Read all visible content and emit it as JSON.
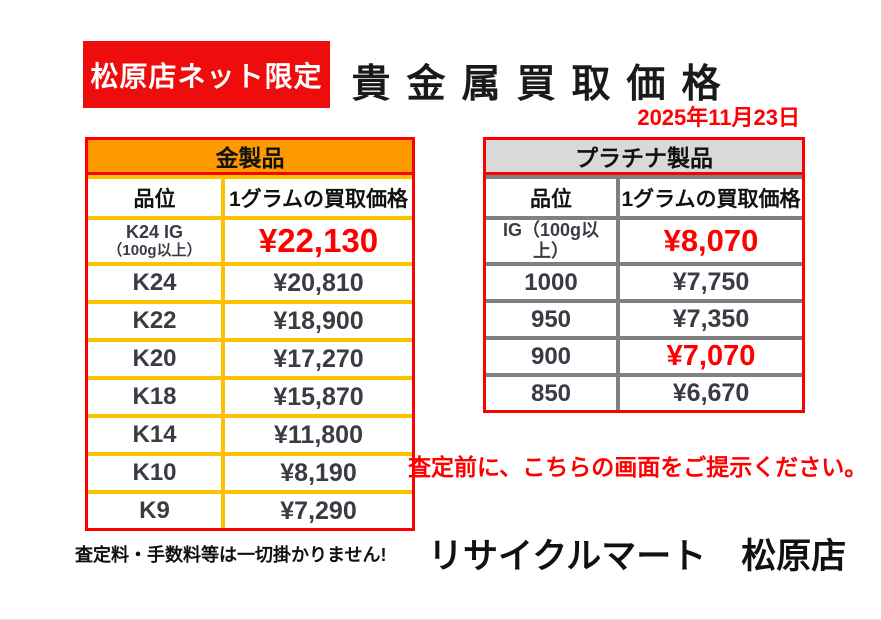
{
  "header": {
    "badge": "松原店ネット限定",
    "title": "貴金属買取価格",
    "date": "2025年11月23日"
  },
  "gold": {
    "title": "金製品",
    "columns": {
      "grade": "品位",
      "price": "1グラムの買取価格"
    },
    "rows": [
      {
        "grade": "K24 IG",
        "grade_note": "（100g以上）",
        "price": "¥22,130"
      },
      {
        "grade": "K24",
        "price": "¥20,810"
      },
      {
        "grade": "K22",
        "price": "¥18,900"
      },
      {
        "grade": "K20",
        "price": "¥17,270"
      },
      {
        "grade": "K18",
        "price": "¥15,870"
      },
      {
        "grade": "K14",
        "price": "¥11,800"
      },
      {
        "grade": "K10",
        "price": "¥8,190"
      },
      {
        "grade": "K9",
        "price": "¥7,290"
      }
    ]
  },
  "platinum": {
    "title": "プラチナ製品",
    "columns": {
      "grade": "品位",
      "price": "1グラムの買取価格"
    },
    "rows": [
      {
        "grade": "IG（100g以上）",
        "price": "¥8,070"
      },
      {
        "grade": "1000",
        "price": "¥7,750"
      },
      {
        "grade": "950",
        "price": "¥7,350"
      },
      {
        "grade": "900",
        "price": "¥7,070"
      },
      {
        "grade": "850",
        "price": "¥6,670"
      }
    ]
  },
  "notice": "査定前に、こちらの画面をご提示ください。",
  "footer": {
    "no_fee": "査定料・手数料等は一切掛かりません!",
    "store": "リサイクルマート　松原店"
  },
  "colors": {
    "accent_red": "#ff0000",
    "gold_header": "#ff9900",
    "gold_grid": "#ffc000",
    "platinum_header": "#d9d9d9",
    "platinum_grid": "#808080",
    "text_dark": "#3b3b46"
  }
}
